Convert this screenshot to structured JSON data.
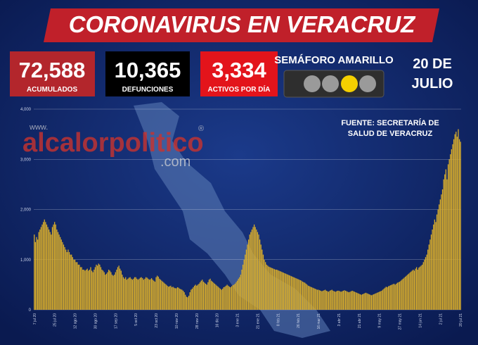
{
  "header": {
    "title": "CORONAVIRUS EN VERACRUZ"
  },
  "stats": [
    {
      "value": "72,588",
      "label": "ACUMULADOS"
    },
    {
      "value": "10,365",
      "label": "DEFUNCIONES"
    },
    {
      "value": "3,334",
      "label": "ACTIVOS POR DÍA"
    }
  ],
  "semaforo": "SEMÁFORO AMARILLO",
  "date": [
    "20 DE",
    "JULIO"
  ],
  "source": [
    "FUENTE: SECRETARÍA DE",
    "SALUD DE VERACRUZ"
  ],
  "watermark": {
    "prefix": "www.",
    "name": "alcalorpolitico",
    "mark": "®",
    "suffix": ".com"
  },
  "chart_data": {
    "type": "bar",
    "color": "#d9ad2b",
    "grid": true,
    "ylim": [
      0,
      4000
    ],
    "yticks": [
      0,
      {
        "value": 1000,
        "label": "1,000"
      },
      {
        "value": 2000,
        "label": "2,000"
      },
      {
        "value": 3000,
        "label": "3,000"
      },
      {
        "value": 4000,
        "label": "4,000"
      }
    ],
    "categories": [
      "7 jul 20",
      null,
      null,
      null,
      null,
      null,
      null,
      null,
      null,
      null,
      null,
      null,
      null,
      null,
      null,
      null,
      null,
      null,
      "25 jul 20",
      null,
      null,
      null,
      null,
      null,
      null,
      null,
      null,
      null,
      null,
      null,
      null,
      null,
      null,
      null,
      null,
      null,
      "12 ago 20",
      null,
      null,
      null,
      null,
      null,
      null,
      null,
      null,
      null,
      null,
      null,
      null,
      null,
      null,
      null,
      null,
      null,
      "30 ago 20",
      null,
      null,
      null,
      null,
      null,
      null,
      null,
      null,
      null,
      null,
      null,
      null,
      null,
      null,
      null,
      null,
      null,
      "17 sep 20",
      null,
      null,
      null,
      null,
      null,
      null,
      null,
      null,
      null,
      null,
      null,
      null,
      null,
      null,
      null,
      null,
      null,
      "5 oct 20",
      null,
      null,
      null,
      null,
      null,
      null,
      null,
      null,
      null,
      null,
      null,
      null,
      null,
      null,
      null,
      null,
      null,
      "23 oct 20",
      null,
      null,
      null,
      null,
      null,
      null,
      null,
      null,
      null,
      null,
      null,
      null,
      null,
      null,
      null,
      null,
      null,
      "10 nov 20",
      null,
      null,
      null,
      null,
      null,
      null,
      null,
      null,
      null,
      null,
      null,
      null,
      null,
      null,
      null,
      null,
      null,
      "28 nov 20",
      null,
      null,
      null,
      null,
      null,
      null,
      null,
      null,
      null,
      null,
      null,
      null,
      null,
      null,
      null,
      null,
      null,
      "16 dic 20",
      null,
      null,
      null,
      null,
      null,
      null,
      null,
      null,
      null,
      null,
      null,
      null,
      null,
      null,
      null,
      null,
      null,
      "3 ene 21",
      null,
      null,
      null,
      null,
      null,
      null,
      null,
      null,
      null,
      null,
      null,
      null,
      null,
      null,
      null,
      null,
      null,
      "21 ene 21",
      null,
      null,
      null,
      null,
      null,
      null,
      null,
      null,
      null,
      null,
      null,
      null,
      null,
      null,
      null,
      null,
      null,
      "8 feb 21",
      null,
      null,
      null,
      null,
      null,
      null,
      null,
      null,
      null,
      null,
      null,
      null,
      null,
      null,
      null,
      null,
      null,
      "26 feb 21",
      null,
      null,
      null,
      null,
      null,
      null,
      null,
      null,
      null,
      null,
      null,
      null,
      null,
      null,
      null,
      null,
      null,
      "16 mar 21",
      null,
      null,
      null,
      null,
      null,
      null,
      null,
      null,
      null,
      null,
      null,
      null,
      null,
      null,
      null,
      null,
      null,
      "3 abr 21",
      null,
      null,
      null,
      null,
      null,
      null,
      null,
      null,
      null,
      null,
      null,
      null,
      null,
      null,
      null,
      null,
      null,
      "21 abr 21",
      null,
      null,
      null,
      null,
      null,
      null,
      null,
      null,
      null,
      null,
      null,
      null,
      null,
      null,
      null,
      null,
      null,
      "9 may 21",
      null,
      null,
      null,
      null,
      null,
      null,
      null,
      null,
      null,
      null,
      null,
      null,
      null,
      null,
      null,
      null,
      null,
      "27 may 21",
      null,
      null,
      null,
      null,
      null,
      null,
      null,
      null,
      null,
      null,
      null,
      null,
      null,
      null,
      null,
      null,
      null,
      "14 jun 21",
      null,
      null,
      null,
      null,
      null,
      null,
      null,
      null,
      null,
      null,
      null,
      null,
      null,
      null,
      null,
      null,
      null,
      "2 jul 21",
      null,
      null,
      null,
      null,
      null,
      null,
      null,
      null,
      null,
      null,
      null,
      null,
      null,
      null,
      null,
      null,
      null,
      "20 jul 21"
    ],
    "values": [
      1500,
      1350,
      1450,
      1400,
      1550,
      1600,
      1650,
      1700,
      1750,
      1800,
      1750,
      1700,
      1650,
      1600,
      1550,
      1500,
      1650,
      1700,
      1750,
      1700,
      1600,
      1550,
      1500,
      1450,
      1400,
      1350,
      1300,
      1250,
      1200,
      1150,
      1200,
      1150,
      1100,
      1100,
      1050,
      1000,
      1000,
      950,
      950,
      900,
      900,
      850,
      850,
      800,
      800,
      780,
      800,
      820,
      780,
      800,
      850,
      780,
      750,
      800,
      850,
      900,
      880,
      920,
      900,
      850,
      800,
      780,
      750,
      700,
      720,
      750,
      800,
      780,
      750,
      700,
      680,
      700,
      750,
      800,
      850,
      880,
      820,
      780,
      700,
      650,
      620,
      650,
      600,
      620,
      640,
      650,
      620,
      600,
      620,
      650,
      650,
      620,
      600,
      620,
      640,
      650,
      630,
      600,
      620,
      650,
      640,
      620,
      600,
      610,
      630,
      600,
      580,
      560,
      650,
      680,
      660,
      620,
      600,
      580,
      560,
      540,
      520,
      500,
      480,
      460,
      470,
      480,
      450,
      460,
      440,
      430,
      430,
      450,
      440,
      420,
      410,
      400,
      380,
      350,
      300,
      260,
      250,
      280,
      350,
      400,
      420,
      450,
      480,
      500,
      480,
      500,
      520,
      550,
      580,
      600,
      560,
      540,
      520,
      500,
      550,
      600,
      620,
      580,
      560,
      540,
      520,
      500,
      480,
      460,
      440,
      420,
      400,
      420,
      450,
      460,
      480,
      500,
      480,
      460,
      450,
      470,
      490,
      500,
      520,
      550,
      580,
      620,
      650,
      700,
      800,
      900,
      1000,
      1100,
      1200,
      1300,
      1400,
      1500,
      1550,
      1600,
      1650,
      1700,
      1650,
      1600,
      1550,
      1500,
      1400,
      1300,
      1200,
      1100,
      1000,
      950,
      900,
      880,
      860,
      850,
      840,
      830,
      820,
      810,
      800,
      800,
      790,
      780,
      770,
      760,
      750,
      740,
      730,
      720,
      710,
      700,
      690,
      680,
      670,
      660,
      650,
      640,
      630,
      620,
      610,
      600,
      590,
      580,
      560,
      550,
      540,
      520,
      500,
      480,
      470,
      460,
      450,
      440,
      430,
      420,
      410,
      400,
      400,
      390,
      380,
      370,
      380,
      390,
      400,
      380,
      370,
      360,
      380,
      390,
      400,
      380,
      370,
      360,
      370,
      380,
      380,
      370,
      360,
      370,
      380,
      390,
      380,
      370,
      360,
      350,
      360,
      370,
      380,
      370,
      360,
      350,
      340,
      330,
      320,
      310,
      300,
      310,
      320,
      330,
      340,
      330,
      320,
      310,
      300,
      290,
      300,
      310,
      320,
      330,
      340,
      350,
      360,
      370,
      380,
      400,
      420,
      440,
      460,
      450,
      470,
      480,
      490,
      500,
      510,
      520,
      500,
      520,
      540,
      550,
      560,
      580,
      600,
      620,
      640,
      660,
      680,
      700,
      720,
      740,
      760,
      780,
      800,
      780,
      820,
      850,
      800,
      840,
      860,
      880,
      900,
      950,
      1000,
      1050,
      1100,
      1200,
      1300,
      1400,
      1500,
      1600,
      1700,
      1800,
      1750,
      1900,
      2000,
      2100,
      2200,
      2300,
      2400,
      2600,
      2700,
      2800,
      2600,
      2900,
      3000,
      3100,
      3200,
      3300,
      3400,
      3500,
      3550,
      3450,
      3600,
      3400,
      3350
    ]
  }
}
